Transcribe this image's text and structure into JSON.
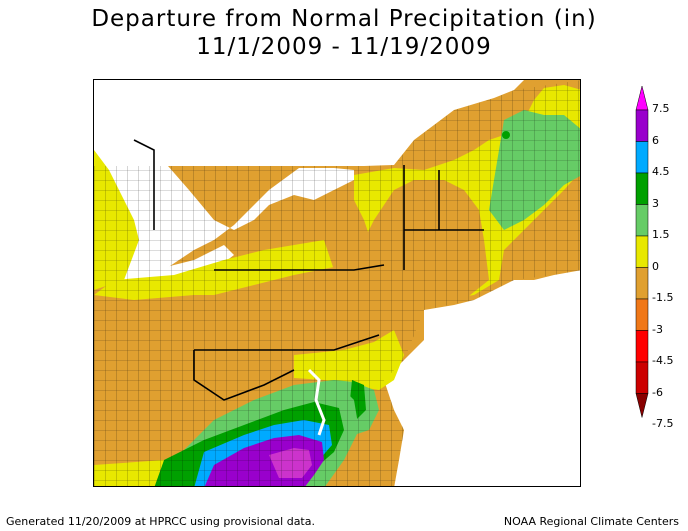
{
  "title": {
    "line1": "Departure from Normal Precipitation (in)",
    "line2": "11/1/2009 - 11/19/2009"
  },
  "legend": {
    "labels": [
      "7.5",
      "6",
      "4.5",
      "3",
      "1.5",
      "0",
      "-1.5",
      "-3",
      "-4.5",
      "-6",
      "-7.5"
    ],
    "colors": [
      "#ff00ff",
      "#9900cc",
      "#00aaff",
      "#00a000",
      "#66cc66",
      "#e8e800",
      "#e0a030",
      "#f07818",
      "#ff0000",
      "#cc0000",
      "#880000"
    ]
  },
  "footer": {
    "left": "Generated 11/20/2009 at HPRCC using provisional data.",
    "right": "NOAA Regional Climate Centers"
  },
  "colors": {
    "lake": "#ffffff",
    "ocean": "#ffffff",
    "county_line": "#000000"
  }
}
